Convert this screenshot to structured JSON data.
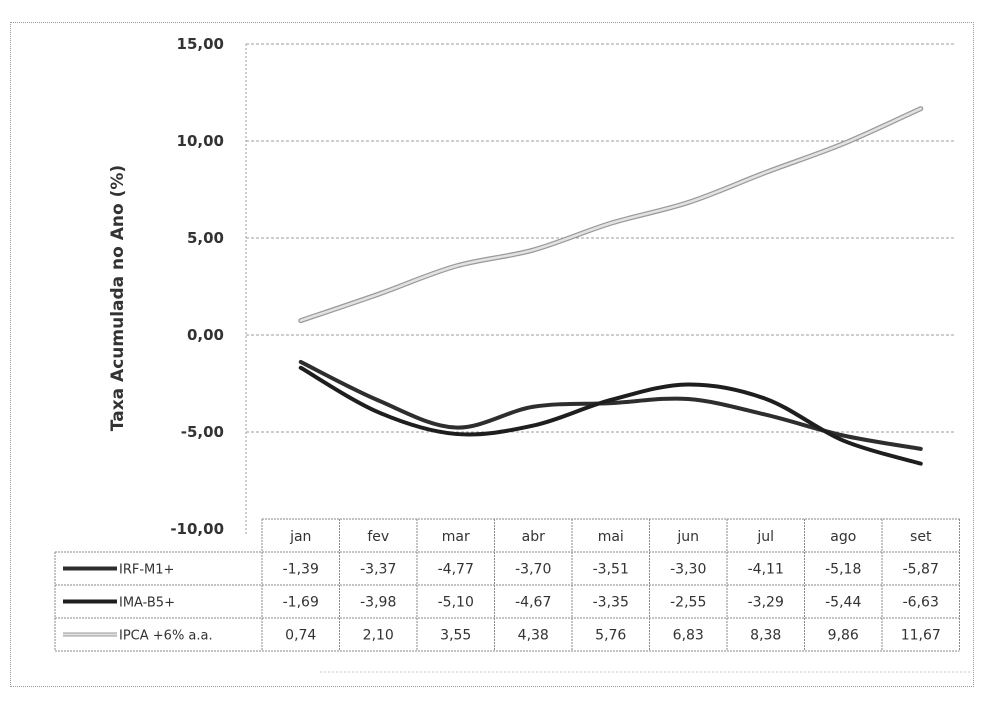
{
  "chart_data": {
    "type": "line",
    "title": "",
    "ylabel": "Taxa Acumulada no Ano (%)",
    "xlabel": "",
    "ylim": [
      -10,
      15
    ],
    "yticks": [
      "15,00",
      "10,00",
      "5,00",
      "0,00",
      "-5,00",
      "-10,00"
    ],
    "ytick_values": [
      15,
      10,
      5,
      0,
      -5,
      -10
    ],
    "grid": true,
    "legend": "data-table",
    "categories": [
      "jan",
      "fev",
      "mar",
      "abr",
      "mai",
      "jun",
      "jul",
      "ago",
      "set"
    ],
    "series": [
      {
        "name": "IRF-M1+",
        "color": "#2e2e2e",
        "style": "solid",
        "values": [
          -1.39,
          -3.37,
          -4.77,
          -3.7,
          -3.51,
          -3.3,
          -4.11,
          -5.18,
          -5.87
        ],
        "labels": [
          "-1,39",
          "-3,37",
          "-4,77",
          "-3,70",
          "-3,51",
          "-3,30",
          "-4,11",
          "-5,18",
          "-5,87"
        ]
      },
      {
        "name": "IMA-B5+",
        "color": "#1e1e1e",
        "style": "solid",
        "values": [
          -1.69,
          -3.98,
          -5.1,
          -4.67,
          -3.35,
          -2.55,
          -3.29,
          -5.44,
          -6.63
        ],
        "labels": [
          "-1,69",
          "-3,98",
          "-5,10",
          "-4,67",
          "-3,35",
          "-2,55",
          "-3,29",
          "-5,44",
          "-6,63"
        ]
      },
      {
        "name": "IPCA +6% a.a.",
        "color": "#a8a8a8",
        "style": "light",
        "values": [
          0.74,
          2.1,
          3.55,
          4.38,
          5.76,
          6.83,
          8.38,
          9.86,
          11.67
        ],
        "labels": [
          "0,74",
          "2,10",
          "3,55",
          "4,38",
          "5,76",
          "6,83",
          "8,38",
          "9,86",
          "11,67"
        ]
      }
    ]
  }
}
